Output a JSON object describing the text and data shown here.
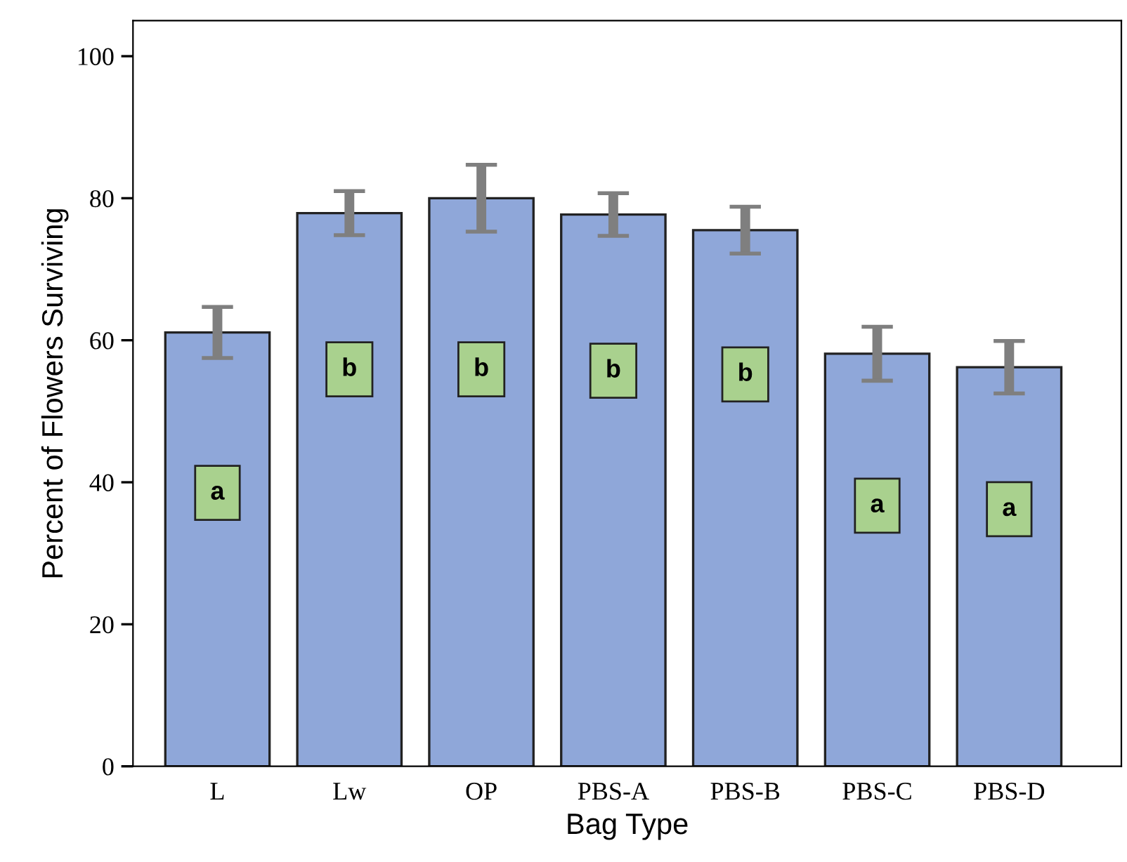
{
  "chart_data": {
    "type": "bar",
    "xlabel": "Bag Type",
    "ylabel": "Percent of Flowers Surviving",
    "categories": [
      "L",
      "Lw",
      "OP",
      "PBS-A",
      "PBS-B",
      "PBS-C",
      "PBS-D"
    ],
    "values": [
      61.1,
      77.9,
      80,
      77.7,
      75.5,
      58.1,
      56.2
    ],
    "errors": [
      3.6,
      3.1,
      4.7,
      3,
      3.3,
      3.8,
      3.7
    ],
    "color": "#8fa7d9",
    "ylim": [
      0,
      105
    ],
    "yticks": [
      0,
      20,
      40,
      60,
      80,
      100
    ],
    "grid": false,
    "annotations": [
      {
        "text": "a",
        "x": "L",
        "y": 38.5
      },
      {
        "text": "b",
        "x": "Lw",
        "y": 55.9
      },
      {
        "text": "b",
        "x": "OP",
        "y": 55.9
      },
      {
        "text": "b",
        "x": "PBS-A",
        "y": 55.7
      },
      {
        "text": "b",
        "x": "PBS-B",
        "y": 55.2
      },
      {
        "text": "a",
        "x": "PBS-C",
        "y": 36.7
      },
      {
        "text": "a",
        "x": "PBS-D",
        "y": 36.2
      }
    ]
  }
}
